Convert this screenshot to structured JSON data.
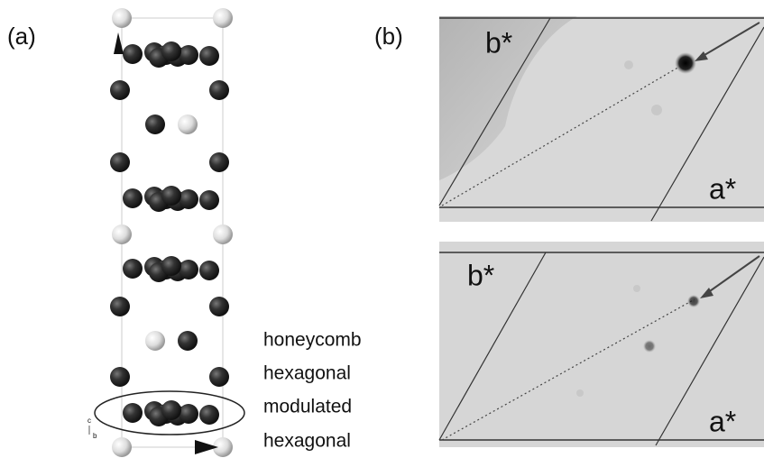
{
  "panel_a": {
    "label": "(a)",
    "layer_labels": [
      "honeycomb",
      "hexagonal",
      "modulated",
      "hexagonal"
    ],
    "axes": [
      "c",
      "b"
    ]
  },
  "panel_b": {
    "label": "(b)",
    "patterns": [
      {
        "b_label": "b*",
        "a_label": "a*"
      },
      {
        "b_label": "b*",
        "a_label": "a*"
      }
    ]
  }
}
